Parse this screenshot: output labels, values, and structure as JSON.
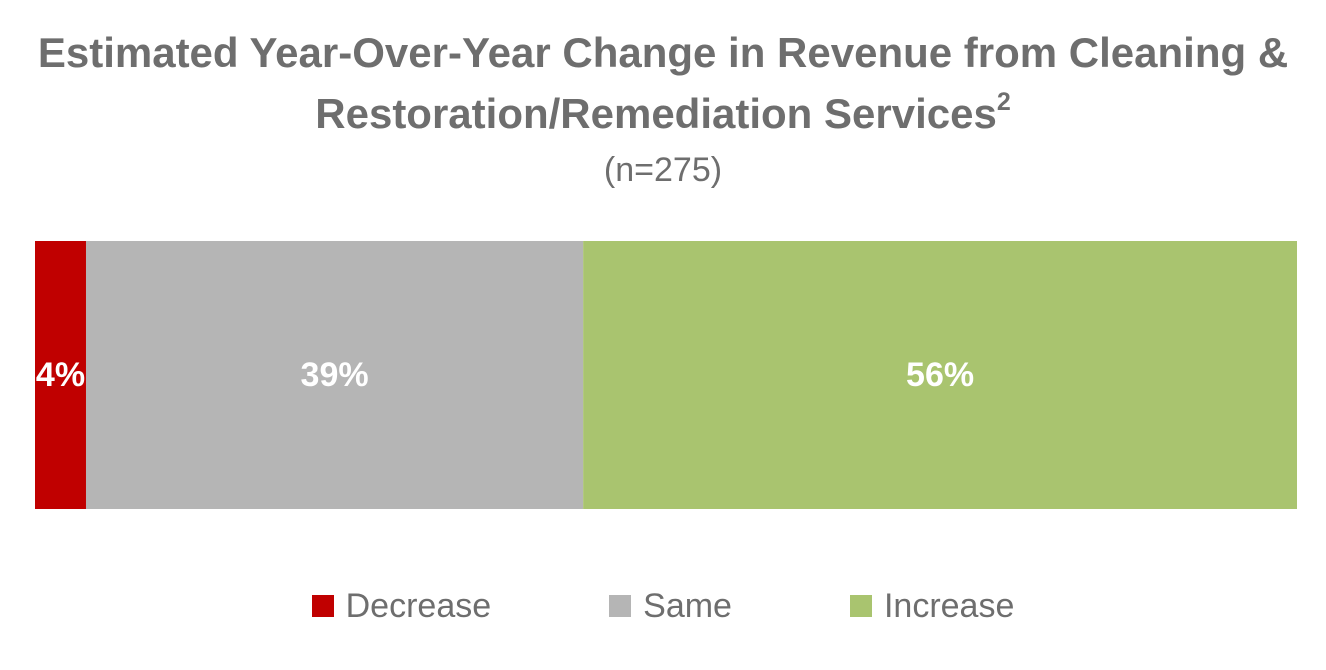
{
  "chart_data": {
    "type": "bar",
    "orientation": "horizontal",
    "stacked": true,
    "title_line1": "Estimated Year-Over-Year Change in Revenue from Cleaning &",
    "title_line2": "Restoration/Remediation Services",
    "title_superscript": "2",
    "subtitle": "(n=275)",
    "xlabel": "",
    "ylabel": "",
    "xlim": [
      0,
      99
    ],
    "grid": false,
    "legend_position": "bottom",
    "series": [
      {
        "name": "Decrease",
        "value": 4,
        "label": "4%",
        "color": "#c00000"
      },
      {
        "name": "Same",
        "value": 39,
        "label": "39%",
        "color": "#b5b5b5"
      },
      {
        "name": "Increase",
        "value": 56,
        "label": "56%",
        "color": "#a9c46f"
      }
    ]
  }
}
